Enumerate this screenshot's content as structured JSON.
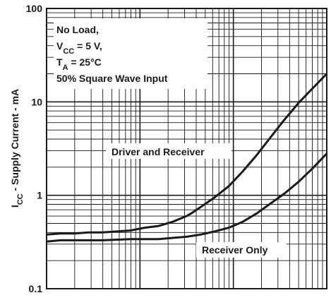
{
  "chart_data": {
    "type": "line",
    "ylabel": "I",
    "ylabel_sub": "CC",
    "ylabel_rest": " - Supply Current - mA",
    "y_scale": "log",
    "ylim": [
      0.1,
      100
    ],
    "y_ticks": [
      {
        "value": 0.1,
        "label": "0.1"
      },
      {
        "value": 1,
        "label": "1"
      },
      {
        "value": 10,
        "label": "10"
      },
      {
        "value": 100,
        "label": "100"
      }
    ],
    "x_scale": "log",
    "grid": true,
    "conditions": {
      "line1": "No Load,",
      "line2_main": "V",
      "line2_sub": "CC",
      "line2_rest": " = 5 V,",
      "line3_main": "T",
      "line3_sub": "A",
      "line3_rest": " = 25°C",
      "line4": "50% Square Wave Input"
    },
    "series": [
      {
        "name": "Driver and Receiver",
        "label_text": "Driver and Receiver",
        "x": [
          0,
          0.05,
          0.1,
          0.15,
          0.2,
          0.25,
          0.3,
          0.35,
          0.4,
          0.45,
          0.5,
          0.52,
          0.55,
          0.6,
          0.65,
          0.7,
          0.75,
          0.8,
          0.85,
          0.9,
          0.95,
          1.0
        ],
        "values": [
          0.38,
          0.39,
          0.39,
          0.4,
          0.4,
          0.41,
          0.42,
          0.45,
          0.47,
          0.52,
          0.6,
          0.65,
          0.75,
          0.95,
          1.25,
          1.8,
          2.7,
          4.2,
          6.5,
          9.8,
          14.0,
          20.0
        ]
      },
      {
        "name": "Receiver Only",
        "label_text": "Receiver Only",
        "x": [
          0,
          0.05,
          0.1,
          0.2,
          0.3,
          0.4,
          0.45,
          0.5,
          0.55,
          0.6,
          0.65,
          0.7,
          0.75,
          0.8,
          0.85,
          0.9,
          0.95,
          1.0
        ],
        "values": [
          0.32,
          0.33,
          0.33,
          0.33,
          0.34,
          0.34,
          0.35,
          0.36,
          0.38,
          0.41,
          0.45,
          0.52,
          0.64,
          0.82,
          1.05,
          1.4,
          1.95,
          2.8
        ]
      }
    ]
  }
}
